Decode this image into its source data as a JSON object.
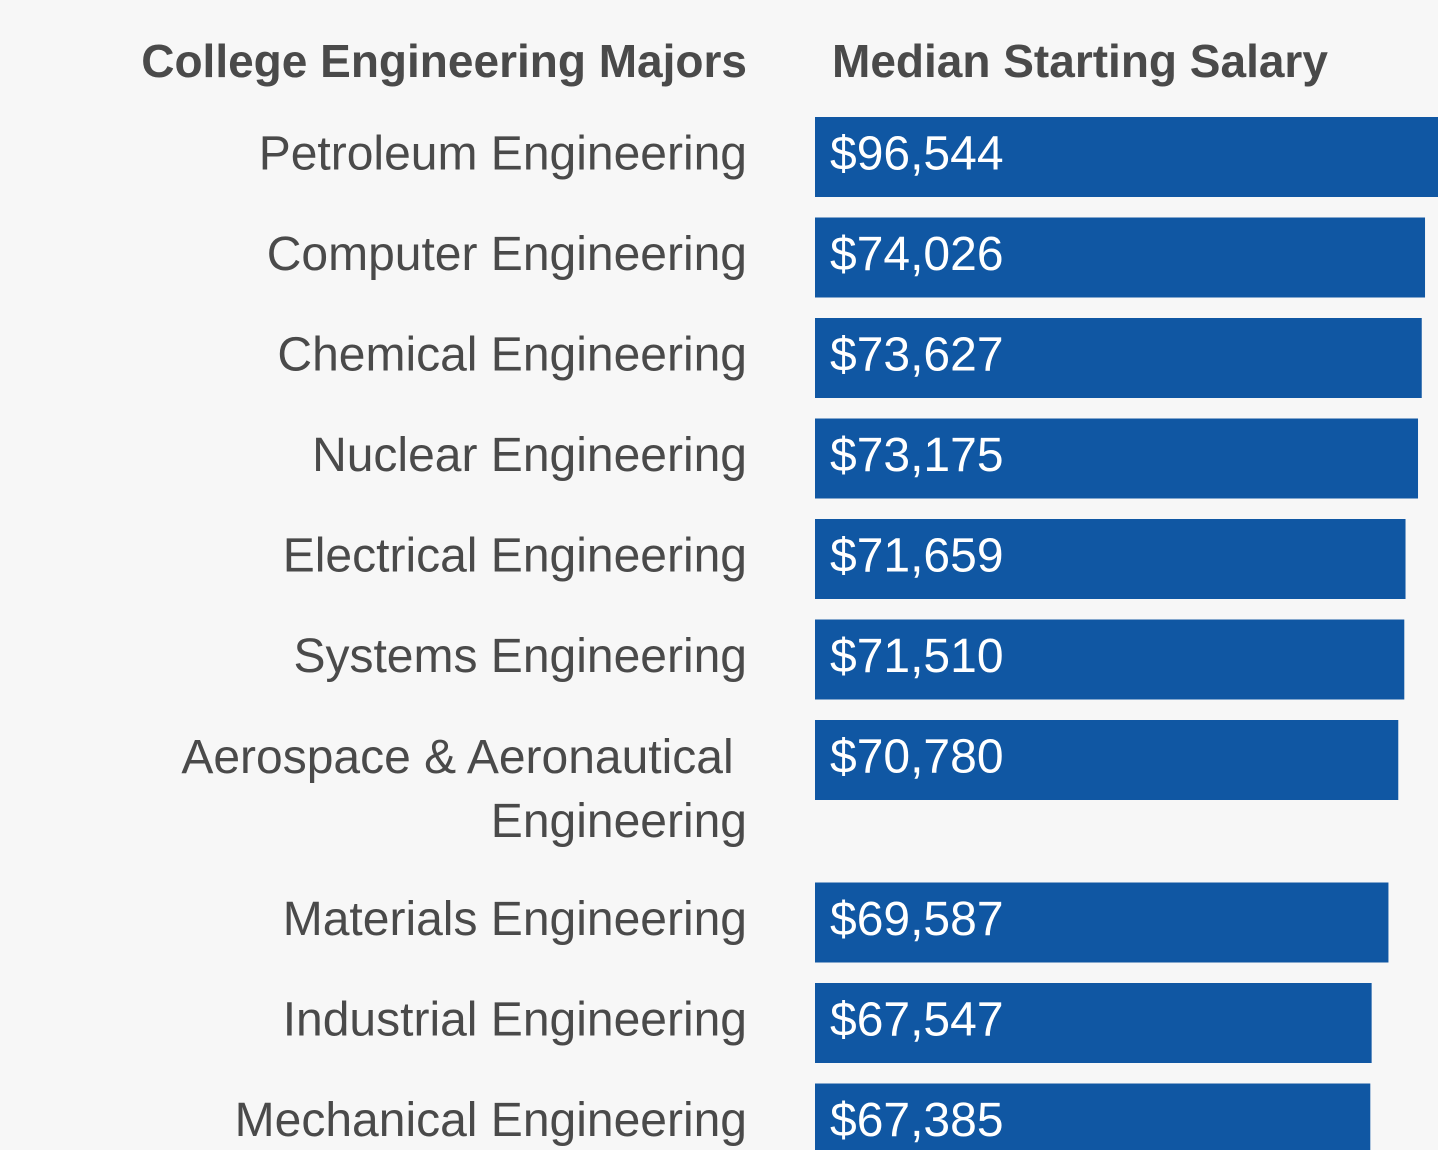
{
  "chart_data": {
    "type": "bar",
    "orientation": "horizontal",
    "category_label": "College Engineering Majors",
    "value_label": "Median Starting Salary",
    "categories": [
      "Petroleum Engineering",
      "Computer Engineering",
      "Chemical Engineering",
      "Nuclear Engineering",
      "Electrical Engineering",
      "Systems Engineering",
      "Aerospace & Aeronautical Engineering",
      "Materials Engineering",
      "Industrial Engineering",
      "Mechanical Engineering"
    ],
    "values": [
      96544,
      74026,
      73627,
      73175,
      71659,
      71510,
      70780,
      69587,
      67547,
      67385
    ],
    "value_labels": [
      "$96,544",
      "$74,026",
      "$73,627",
      "$73,175",
      "$71,659",
      "$71,510",
      "$70,780",
      "$69,587",
      "$67,547",
      "$67,385"
    ],
    "color": "#1057a3",
    "xlim": [
      0,
      75600
    ]
  }
}
